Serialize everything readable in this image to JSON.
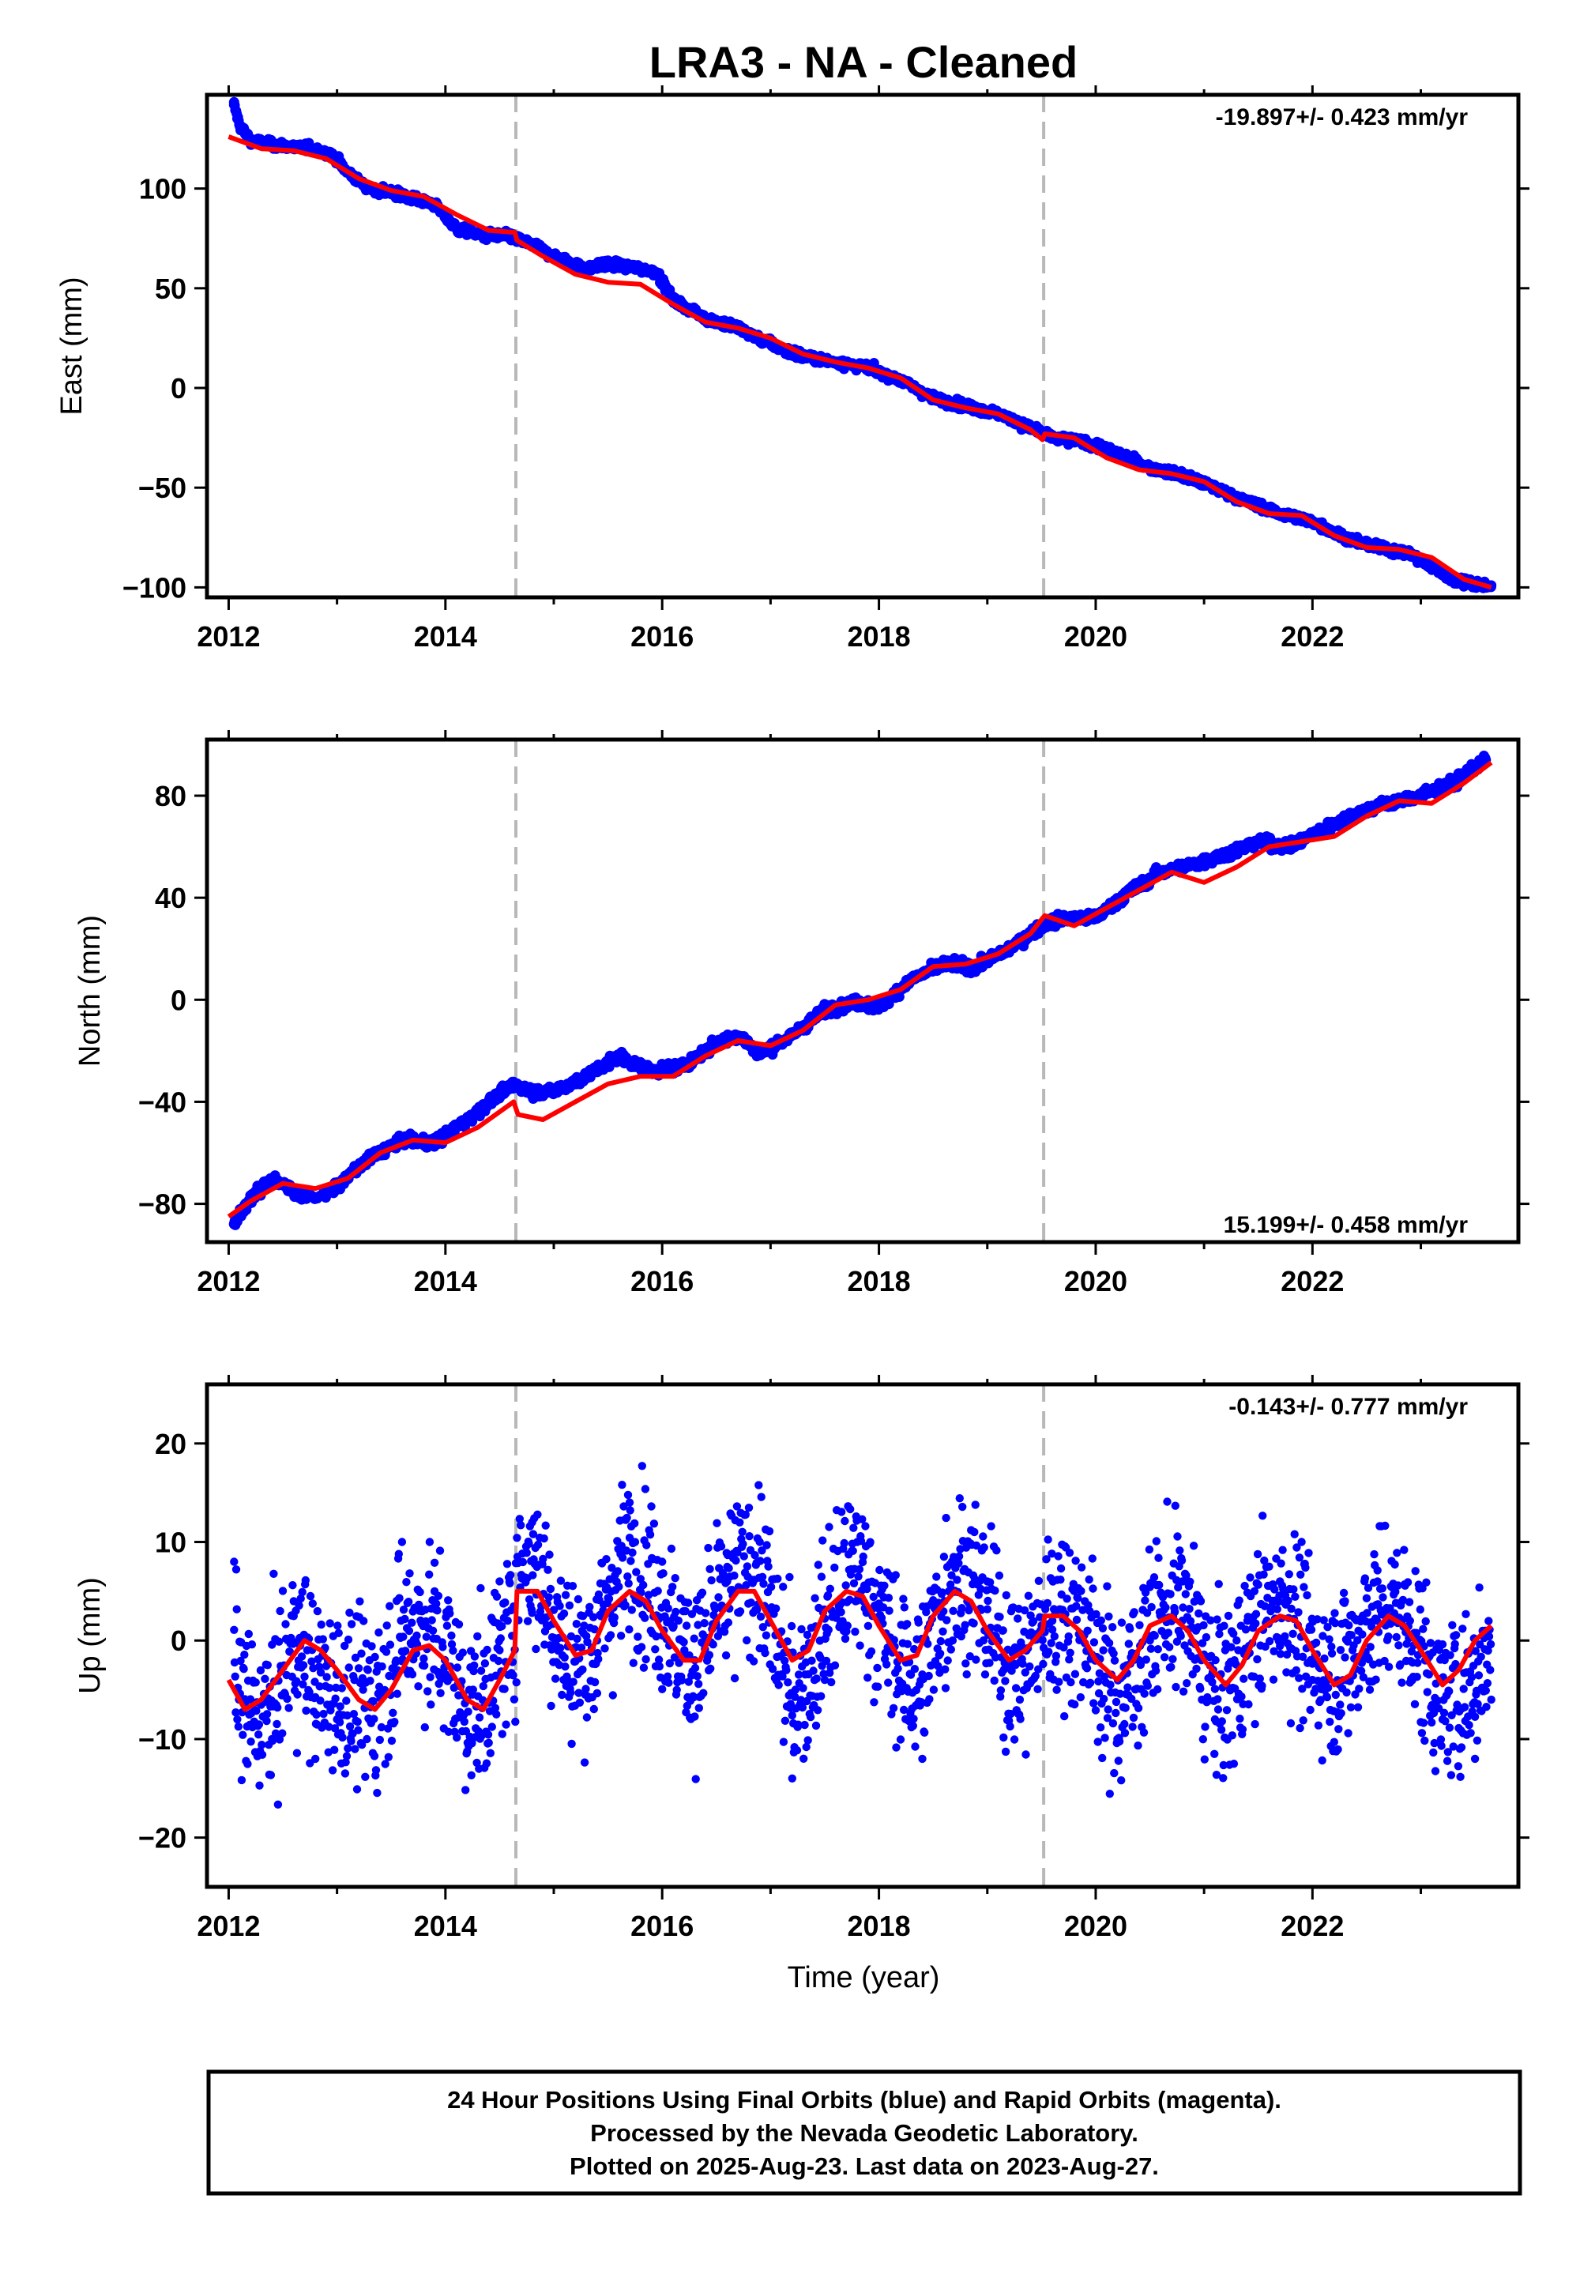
{
  "title": "LRA3  - NA - Cleaned",
  "colors": {
    "data": "#0000ff",
    "model": "#ff0000",
    "break_line": "#b8b8b8",
    "frame": "#000000"
  },
  "chart_data": [
    {
      "type": "scatter",
      "component": "east",
      "ylabel": "East (mm)",
      "xlabel": "",
      "xlim": [
        2011.8,
        2023.9
      ],
      "ylim": [
        -105,
        147
      ],
      "xticks": [
        2012,
        2014,
        2016,
        2018,
        2020,
        2022
      ],
      "yticks": [
        -100,
        -50,
        0,
        50,
        100
      ],
      "ytick_labels": [
        "−100",
        "−50",
        "0",
        "50",
        "100"
      ],
      "breaks": [
        2014.65,
        2019.52
      ],
      "rate_label": "-19.897+/- 0.423 mm/yr",
      "rate_position": "top-right",
      "series": [
        {
          "kind": "points",
          "x": [
            2012.05,
            2012.1,
            2012.2,
            2012.4,
            2012.6,
            2012.8,
            2012.95,
            2013.1,
            2013.3,
            2013.6,
            2013.9,
            2014.1,
            2014.3,
            2014.6,
            2014.8,
            2015.0,
            2015.3,
            2015.5,
            2015.7,
            2015.95,
            2016.1,
            2016.4,
            2016.7,
            2017.0,
            2017.3,
            2017.6,
            2017.9,
            2018.2,
            2018.5,
            2018.8,
            2019.1,
            2019.4,
            2019.6,
            2019.9,
            2020.2,
            2020.5,
            2020.8,
            2021.1,
            2021.4,
            2021.7,
            2022.0,
            2022.3,
            2022.6,
            2022.9,
            2023.1,
            2023.3,
            2023.5,
            2023.65
          ],
          "y": [
            142,
            132,
            124,
            122,
            121,
            120,
            117,
            108,
            100,
            97,
            92,
            80,
            77,
            76,
            72,
            66,
            60,
            62,
            61,
            58,
            44,
            35,
            30,
            22,
            16,
            13,
            10,
            4,
            -5,
            -9,
            -13,
            -20,
            -25,
            -27,
            -33,
            -40,
            -44,
            -50,
            -57,
            -63,
            -67,
            -75,
            -80,
            -83,
            -90,
            -96,
            -98,
            -99
          ]
        },
        {
          "kind": "model",
          "x": [
            2012.0,
            2012.3,
            2012.6,
            2012.9,
            2013.2,
            2013.5,
            2013.8,
            2014.1,
            2014.4,
            2014.64,
            2014.66,
            2014.9,
            2015.2,
            2015.5,
            2015.8,
            2016.1,
            2016.4,
            2016.7,
            2017.0,
            2017.3,
            2017.6,
            2017.9,
            2018.2,
            2018.5,
            2018.8,
            2019.1,
            2019.4,
            2019.51,
            2019.53,
            2019.8,
            2020.1,
            2020.4,
            2020.7,
            2021.0,
            2021.3,
            2021.6,
            2021.9,
            2022.2,
            2022.5,
            2022.8,
            2023.1,
            2023.4,
            2023.65
          ],
          "y": [
            126,
            120,
            119,
            115,
            105,
            99,
            96,
            87,
            79,
            78,
            74,
            66,
            57,
            53,
            52,
            42,
            33,
            30,
            25,
            17,
            13,
            10,
            5,
            -6,
            -10,
            -13,
            -21,
            -26,
            -23,
            -25,
            -35,
            -41,
            -43,
            -47,
            -57,
            -63,
            -64,
            -74,
            -80,
            -81,
            -85,
            -96,
            -100
          ]
        }
      ]
    },
    {
      "type": "scatter",
      "component": "north",
      "ylabel": "North (mm)",
      "xlabel": "",
      "xlim": [
        2011.8,
        2023.9
      ],
      "ylim": [
        -95,
        102
      ],
      "xticks": [
        2012,
        2014,
        2016,
        2018,
        2020,
        2022
      ],
      "yticks": [
        -80,
        -40,
        0,
        40,
        80
      ],
      "ytick_labels": [
        "−80",
        "−40",
        "0",
        "40",
        "80"
      ],
      "breaks": [
        2014.65,
        2019.52
      ],
      "rate_label": "15.199+/- 0.458 mm/yr",
      "rate_position": "bottom-right",
      "series": [
        {
          "kind": "points",
          "x": [
            2012.05,
            2012.2,
            2012.4,
            2012.6,
            2012.8,
            2013.0,
            2013.3,
            2013.6,
            2013.9,
            2014.2,
            2014.5,
            2014.64,
            2014.8,
            2015.0,
            2015.3,
            2015.6,
            2015.9,
            2016.2,
            2016.5,
            2016.7,
            2016.9,
            2017.2,
            2017.5,
            2017.8,
            2018.0,
            2018.3,
            2018.6,
            2018.9,
            2019.2,
            2019.5,
            2019.7,
            2020.0,
            2020.3,
            2020.6,
            2020.9,
            2021.2,
            2021.5,
            2021.8,
            2022.1,
            2022.4,
            2022.7,
            2023.0,
            2023.3,
            2023.6
          ],
          "y": [
            -88,
            -78,
            -70,
            -75,
            -78,
            -73,
            -62,
            -55,
            -56,
            -47,
            -37,
            -33,
            -36,
            -36,
            -30,
            -22,
            -28,
            -26,
            -17,
            -14,
            -21,
            -14,
            -4,
            -1,
            -3,
            8,
            14,
            13,
            20,
            29,
            32,
            32,
            42,
            50,
            53,
            57,
            62,
            60,
            67,
            73,
            77,
            80,
            85,
            94
          ]
        },
        {
          "kind": "model",
          "x": [
            2012.0,
            2012.2,
            2012.5,
            2012.8,
            2013.1,
            2013.4,
            2013.7,
            2014.0,
            2014.3,
            2014.63,
            2014.67,
            2014.9,
            2015.2,
            2015.5,
            2015.8,
            2016.1,
            2016.4,
            2016.7,
            2017.0,
            2017.3,
            2017.6,
            2017.9,
            2018.2,
            2018.5,
            2018.8,
            2019.1,
            2019.4,
            2019.51,
            2019.53,
            2019.8,
            2020.1,
            2020.4,
            2020.7,
            2021.0,
            2021.3,
            2021.6,
            2021.9,
            2022.2,
            2022.5,
            2022.8,
            2023.1,
            2023.4,
            2023.65
          ],
          "y": [
            -85,
            -79,
            -72,
            -74,
            -70,
            -60,
            -55,
            -56,
            -50,
            -40,
            -45,
            -47,
            -40,
            -33,
            -30,
            -30,
            -22,
            -16,
            -18,
            -12,
            -2,
            0,
            4,
            13,
            14,
            18,
            26,
            32,
            33,
            29,
            36,
            43,
            50,
            46,
            52,
            60,
            62,
            64,
            72,
            78,
            77,
            85,
            93
          ]
        }
      ]
    },
    {
      "type": "scatter",
      "component": "up",
      "ylabel": "Up (mm)",
      "xlabel": "Time (year)",
      "xlim": [
        2011.8,
        2023.9
      ],
      "ylim": [
        -25,
        26
      ],
      "xticks": [
        2012,
        2014,
        2016,
        2018,
        2020,
        2022
      ],
      "yticks": [
        -20,
        -10,
        0,
        10,
        20
      ],
      "ytick_labels": [
        "−20",
        "−10",
        "0",
        "10",
        "20"
      ],
      "breaks": [
        2014.65,
        2019.52
      ],
      "rate_label": "-0.143+/- 0.777 mm/yr",
      "rate_position": "top-right",
      "series": [
        {
          "kind": "points",
          "x": [
            2012.05,
            2012.2,
            2012.4,
            2012.6,
            2012.8,
            2013.0,
            2013.3,
            2013.6,
            2013.9,
            2014.2,
            2014.5,
            2014.8,
            2015.1,
            2015.4,
            2015.7,
            2016.0,
            2016.3,
            2016.6,
            2016.9,
            2017.2,
            2017.5,
            2017.8,
            2018.1,
            2018.4,
            2018.7,
            2019.0,
            2019.3,
            2019.6,
            2019.9,
            2020.2,
            2020.5,
            2020.8,
            2021.1,
            2021.4,
            2021.7,
            2022.0,
            2022.3,
            2022.6,
            2022.9,
            2023.2,
            2023.5,
            2023.65
          ],
          "y": [
            8,
            -6,
            -10,
            4,
            -12,
            -8,
            -2,
            10,
            5,
            -6,
            6,
            12,
            -4,
            0,
            14,
            8,
            -2,
            6,
            10,
            -14,
            -4,
            10,
            0,
            -12,
            8,
            6,
            -6,
            2,
            4,
            -10,
            0,
            6,
            -8,
            2,
            6,
            -4,
            4,
            6,
            2,
            -8,
            -12,
            -6
          ]
        },
        {
          "kind": "model",
          "x": [
            2012.0,
            2012.15,
            2012.3,
            2012.5,
            2012.7,
            2012.85,
            2013.0,
            2013.2,
            2013.35,
            2013.5,
            2013.7,
            2013.85,
            2014.0,
            2014.2,
            2014.35,
            2014.5,
            2014.64,
            2014.66,
            2014.85,
            2015.0,
            2015.2,
            2015.35,
            2015.5,
            2015.7,
            2015.85,
            2016.0,
            2016.2,
            2016.35,
            2016.5,
            2016.7,
            2016.85,
            2017.0,
            2017.2,
            2017.35,
            2017.5,
            2017.7,
            2017.85,
            2018.0,
            2018.2,
            2018.35,
            2018.5,
            2018.7,
            2018.85,
            2019.0,
            2019.2,
            2019.35,
            2019.51,
            2019.53,
            2019.7,
            2019.85,
            2020.0,
            2020.2,
            2020.35,
            2020.5,
            2020.7,
            2020.85,
            2021.0,
            2021.2,
            2021.35,
            2021.5,
            2021.7,
            2021.85,
            2022.0,
            2022.2,
            2022.35,
            2022.5,
            2022.7,
            2022.85,
            2023.0,
            2023.2,
            2023.35,
            2023.5,
            2023.65
          ],
          "y": [
            -4,
            -7,
            -6,
            -3,
            0,
            -1,
            -3,
            -6,
            -7,
            -5,
            -1,
            -0.5,
            -2,
            -6,
            -7,
            -4,
            -1,
            5,
            5,
            2,
            -1.5,
            -1,
            3,
            5,
            4,
            1,
            -2,
            -2,
            2,
            5,
            5,
            2,
            -2,
            -1,
            3,
            5,
            4.5,
            1.5,
            -2,
            -1.5,
            2.5,
            5,
            4,
            1,
            -2,
            -1,
            1,
            2.5,
            2.5,
            1,
            -2,
            -4,
            -2,
            1.5,
            2.5,
            1,
            -2,
            -4.5,
            -2.5,
            1,
            2.5,
            2,
            -1,
            -4.5,
            -3.5,
            0,
            2.5,
            1.5,
            -1,
            -4.5,
            -3,
            0,
            1.5
          ]
        }
      ]
    }
  ],
  "footer": {
    "line1": "24 Hour Positions Using Final Orbits (blue) and Rapid Orbits (magenta).",
    "line2": "Processed by the Nevada Geodetic Laboratory.",
    "line3": "Plotted on 2025-Aug-23. Last data on 2023-Aug-27."
  }
}
